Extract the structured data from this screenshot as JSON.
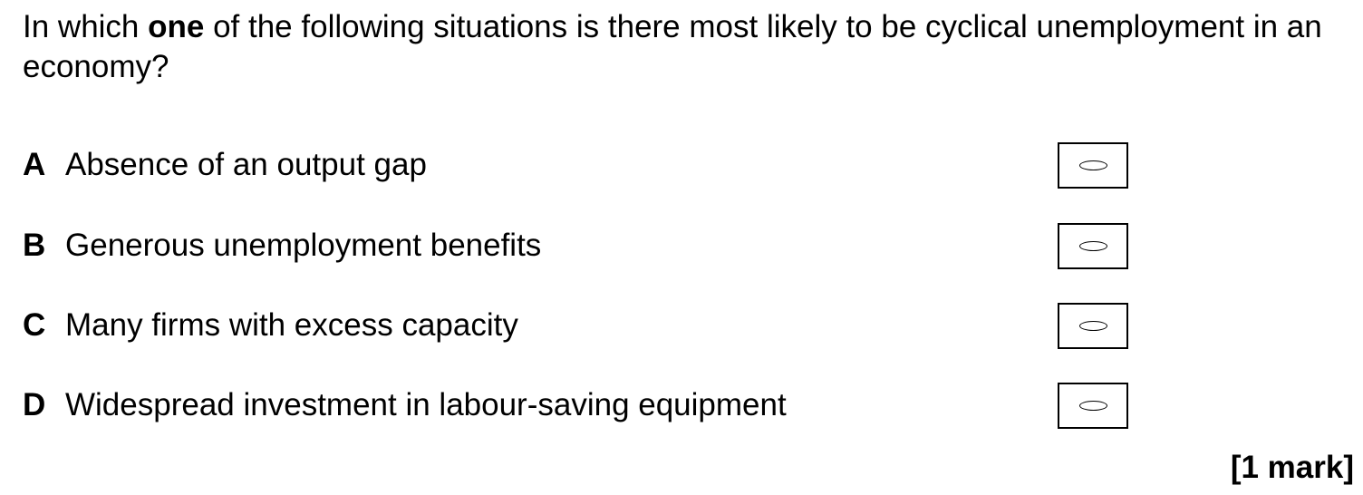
{
  "question": {
    "text_before": "In which ",
    "emphasis": "one",
    "text_after": " of the following situations is there most likely to be cyclical unemployment in an economy?"
  },
  "options": [
    {
      "letter": "A",
      "text": "Absence of an output gap",
      "selected": false
    },
    {
      "letter": "B",
      "text": "Generous unemployment benefits",
      "selected": false
    },
    {
      "letter": "C",
      "text": "Many firms with excess capacity",
      "selected": false
    },
    {
      "letter": "D",
      "text": "Widespread investment in labour-saving equipment",
      "selected": false
    }
  ],
  "marks": "[1 mark]"
}
